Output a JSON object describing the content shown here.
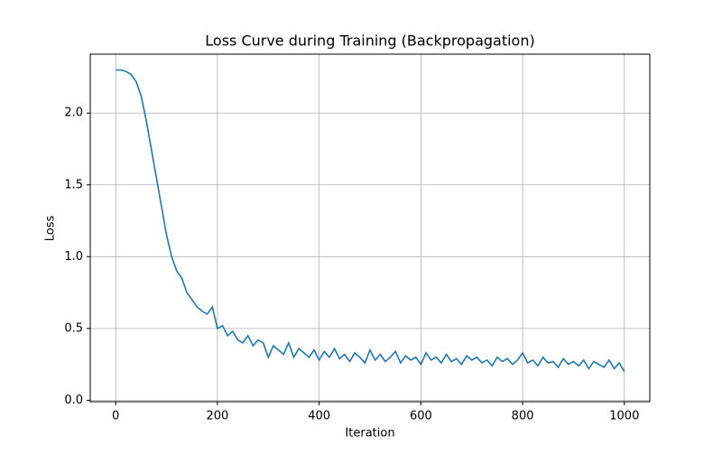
{
  "chart_data": {
    "type": "line",
    "title": "Loss Curve during Training (Backpropagation)",
    "x_label": "Iteration",
    "y_label": "Loss",
    "x": [
      0,
      10,
      20,
      30,
      40,
      50,
      60,
      70,
      80,
      90,
      100,
      110,
      120,
      130,
      140,
      150,
      160,
      170,
      180,
      190,
      200,
      210,
      220,
      230,
      240,
      250,
      260,
      270,
      280,
      290,
      300,
      310,
      320,
      330,
      340,
      350,
      360,
      370,
      380,
      390,
      400,
      410,
      420,
      430,
      440,
      450,
      460,
      470,
      480,
      490,
      500,
      510,
      520,
      530,
      540,
      550,
      560,
      570,
      580,
      590,
      600,
      610,
      620,
      630,
      640,
      650,
      660,
      670,
      680,
      690,
      700,
      710,
      720,
      730,
      740,
      750,
      760,
      770,
      780,
      790,
      800,
      810,
      820,
      830,
      840,
      850,
      860,
      870,
      880,
      890,
      900,
      910,
      920,
      930,
      940,
      950,
      960,
      970,
      980,
      990,
      1000
    ],
    "series": [
      {
        "name": "Loss",
        "color": "#1f77b4",
        "values": [
          2.3,
          2.3,
          2.29,
          2.27,
          2.22,
          2.12,
          1.95,
          1.75,
          1.55,
          1.35,
          1.15,
          1.0,
          0.9,
          0.85,
          0.75,
          0.7,
          0.65,
          0.62,
          0.6,
          0.65,
          0.5,
          0.52,
          0.45,
          0.48,
          0.42,
          0.4,
          0.45,
          0.38,
          0.42,
          0.4,
          0.3,
          0.38,
          0.35,
          0.32,
          0.4,
          0.3,
          0.36,
          0.33,
          0.3,
          0.35,
          0.28,
          0.34,
          0.3,
          0.36,
          0.29,
          0.32,
          0.27,
          0.33,
          0.3,
          0.26,
          0.35,
          0.28,
          0.32,
          0.27,
          0.3,
          0.34,
          0.26,
          0.31,
          0.28,
          0.3,
          0.25,
          0.33,
          0.28,
          0.3,
          0.26,
          0.32,
          0.27,
          0.29,
          0.25,
          0.31,
          0.28,
          0.3,
          0.26,
          0.28,
          0.24,
          0.3,
          0.27,
          0.29,
          0.25,
          0.28,
          0.33,
          0.26,
          0.28,
          0.24,
          0.3,
          0.26,
          0.27,
          0.23,
          0.29,
          0.25,
          0.27,
          0.24,
          0.28,
          0.22,
          0.27,
          0.25,
          0.23,
          0.28,
          0.22,
          0.26,
          0.2
        ]
      }
    ],
    "xlim": [
      -50,
      1050
    ],
    "ylim": [
      -0.01,
      2.41
    ],
    "xticks": [
      0,
      200,
      400,
      600,
      800,
      1000
    ],
    "yticks": [
      {
        "value": 0,
        "label": "0.0"
      },
      {
        "value": 0.5,
        "label": "0.5"
      },
      {
        "value": 1,
        "label": "1.0"
      },
      {
        "value": 1.5,
        "label": "1.5"
      },
      {
        "value": 2,
        "label": "2.0"
      }
    ],
    "grid": true
  }
}
